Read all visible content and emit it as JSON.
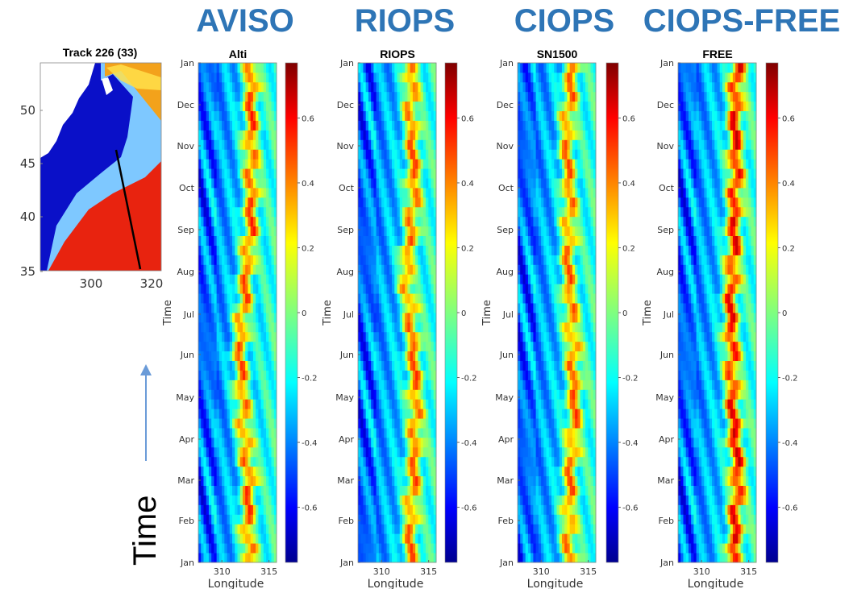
{
  "headers": [
    "AVISO",
    "RIOPS",
    "CIOPS",
    "CIOPS-FREE"
  ],
  "time_label": "Time",
  "map": {
    "title": "Track 226 (33)",
    "x_ticks": [
      "300",
      "320"
    ],
    "y_ticks": [
      "50",
      "45",
      "40",
      "35"
    ],
    "colors": {
      "land": "#ffffff",
      "shelf": "#0a10c8",
      "warm": "#e8230f",
      "track": "#000000"
    }
  },
  "chart_data": [
    {
      "type": "heatmap",
      "title": "Alti",
      "xlabel": "Longitude",
      "ylabel": "Time",
      "x_ticks": [
        "310",
        "315"
      ],
      "xlim": [
        307.5,
        315.8
      ],
      "y_ticks": [
        "Jan",
        "Feb",
        "Mar",
        "Apr",
        "May",
        "Jun",
        "Jul",
        "Aug",
        "Sep",
        "Oct",
        "Nov",
        "Dec",
        "Jan"
      ],
      "colorbar_ticks": [
        "0.6",
        "0.4",
        "0.2",
        "0",
        "-0.2",
        "-0.4",
        "-0.6"
      ],
      "clim": [
        -0.77,
        0.77
      ],
      "colormap": "jet",
      "front_longitude_by_month": [
        312.9,
        312.6,
        313.0,
        312.4,
        312.1,
        311.9,
        312.2,
        312.6,
        313.0,
        313.2,
        313.0,
        313.1,
        313.2
      ],
      "front_amplitude": 0.65
    },
    {
      "type": "heatmap",
      "title": "RIOPS",
      "xlabel": "Longitude",
      "ylabel": "Time",
      "x_ticks": [
        "310",
        "315"
      ],
      "xlim": [
        307.5,
        315.8
      ],
      "y_ticks": [
        "Jan",
        "Feb",
        "Mar",
        "Apr",
        "May",
        "Jun",
        "Jul",
        "Aug",
        "Sep",
        "Oct",
        "Nov",
        "Dec",
        "Jan"
      ],
      "colorbar_ticks": [
        "0.6",
        "0.4",
        "0.2",
        "0",
        "-0.2",
        "-0.4",
        "-0.6"
      ],
      "clim": [
        -0.77,
        0.77
      ],
      "colormap": "jet",
      "front_longitude_by_month": [
        313.0,
        313.1,
        313.3,
        313.6,
        313.5,
        313.4,
        313.1,
        312.5,
        313.2,
        313.4,
        313.3,
        313.1,
        313.2
      ],
      "front_amplitude": 0.6
    },
    {
      "type": "heatmap",
      "title": "SN1500",
      "xlabel": "Longitude",
      "ylabel": "Time",
      "x_ticks": [
        "310",
        "315"
      ],
      "xlim": [
        307.5,
        315.8
      ],
      "y_ticks": [
        "Jan",
        "Feb",
        "Mar",
        "Apr",
        "May",
        "Jun",
        "Jul",
        "Aug",
        "Sep",
        "Oct",
        "Nov",
        "Dec",
        "Jan"
      ],
      "colorbar_ticks": [
        "0.6",
        "0.4",
        "0.2",
        "0",
        "-0.2",
        "-0.4",
        "-0.6"
      ],
      "clim": [
        -0.77,
        0.77
      ],
      "colormap": "jet",
      "front_longitude_by_month": [
        313.0,
        312.9,
        313.0,
        313.4,
        313.5,
        313.4,
        313.1,
        312.8,
        313.0,
        312.9,
        312.7,
        312.9,
        313.3
      ],
      "front_amplitude": 0.6
    },
    {
      "type": "heatmap",
      "title": "FREE",
      "xlabel": "Longitude",
      "ylabel": "Time",
      "x_ticks": [
        "310",
        "315"
      ],
      "xlim": [
        307.5,
        315.8
      ],
      "y_ticks": [
        "Jan",
        "Feb",
        "Mar",
        "Apr",
        "May",
        "Jun",
        "Jul",
        "Aug",
        "Sep",
        "Oct",
        "Nov",
        "Dec",
        "Jan"
      ],
      "colorbar_ticks": [
        "0.6",
        "0.4",
        "0.2",
        "0",
        "-0.2",
        "-0.4",
        "-0.6"
      ],
      "clim": [
        -0.77,
        0.77
      ],
      "colormap": "jet",
      "front_longitude_by_month": [
        313.4,
        313.6,
        313.8,
        313.5,
        313.3,
        313.2,
        313.0,
        313.3,
        313.4,
        313.6,
        313.5,
        313.6,
        313.7
      ],
      "front_amplitude": 0.75
    }
  ]
}
